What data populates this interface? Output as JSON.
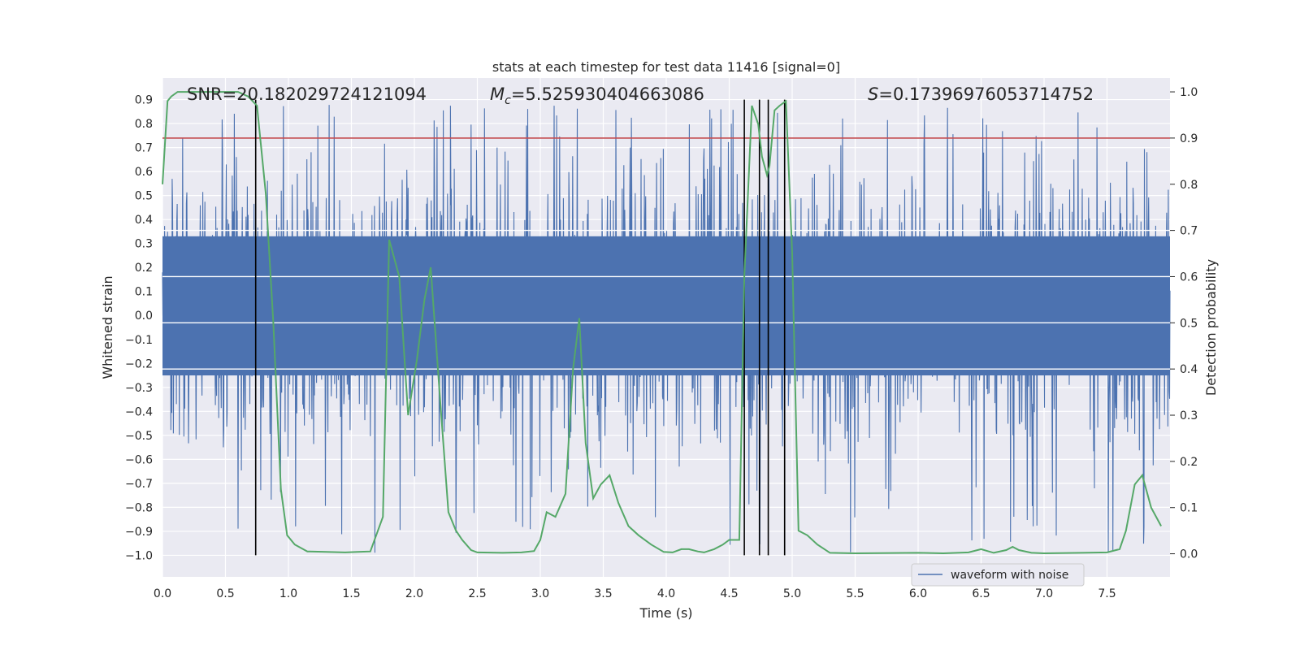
{
  "chart_data": {
    "type": "line",
    "title": "stats at each timestep for test data 11416 [signal=0]",
    "xlabel": "Time (s)",
    "ylabel": "Whitened strain",
    "y2label": "Detection probability",
    "xlim": [
      0.0,
      8.0
    ],
    "ylim": [
      -1.09,
      0.99
    ],
    "y2lim": [
      -0.05,
      1.03
    ],
    "x_ticks": [
      "0.0",
      "0.5",
      "1.0",
      "1.5",
      "2.0",
      "2.5",
      "3.0",
      "3.5",
      "4.0",
      "4.5",
      "5.0",
      "5.5",
      "6.0",
      "6.5",
      "7.0",
      "7.5"
    ],
    "y_ticks": [
      "0.9",
      "0.8",
      "0.7",
      "0.6",
      "0.5",
      "0.4",
      "0.3",
      "0.2",
      "0.1",
      "0.0",
      "−0.1",
      "−0.2",
      "−0.3",
      "−0.4",
      "−0.5",
      "−0.6",
      "−0.7",
      "−0.8",
      "−0.9",
      "−1.0"
    ],
    "y2_ticks": [
      "0.0",
      "0.1",
      "0.2",
      "0.3",
      "0.4",
      "0.5",
      "0.6",
      "0.7",
      "0.8",
      "0.9",
      "1.0"
    ],
    "annotations": {
      "snr": "SNR=20.182029724121094",
      "mc_symbol": "M",
      "mc_sub": "c",
      "mc_value": "=5.525930404663086",
      "s_symbol": "S",
      "s_value": "=0.17396976053714752"
    },
    "legend": {
      "location": "lower right",
      "entries": [
        "waveform with noise"
      ]
    },
    "threshold": {
      "value": 0.9,
      "axis": "y2",
      "color": "#c44e52"
    },
    "detection_markers_x": [
      0.74,
      4.62,
      4.74,
      4.81,
      4.94
    ],
    "series": [
      {
        "name": "waveform with noise",
        "axis": "y",
        "color": "#4c72b0",
        "kind": "noise",
        "core_range": [
          -0.25,
          0.33
        ],
        "typical_max": 0.55,
        "typical_min": -0.5,
        "peak_max": 0.88,
        "peak_min": -1.0
      },
      {
        "axis": "y2",
        "color": "#55a868",
        "x": [
          0.0,
          0.04,
          0.07,
          0.12,
          0.2,
          0.4,
          0.6,
          0.68,
          0.75,
          0.82,
          0.88,
          0.94,
          0.99,
          1.05,
          1.15,
          1.3,
          1.45,
          1.55,
          1.65,
          1.75,
          1.8,
          1.88,
          1.95,
          2.02,
          2.08,
          2.13,
          2.2,
          2.27,
          2.33,
          2.38,
          2.45,
          2.5,
          2.7,
          2.85,
          2.95,
          3.0,
          3.05,
          3.12,
          3.2,
          3.26,
          3.31,
          3.36,
          3.42,
          3.48,
          3.55,
          3.62,
          3.7,
          3.78,
          3.88,
          3.98,
          4.05,
          4.12,
          4.18,
          4.25,
          4.3,
          4.38,
          4.45,
          4.5,
          4.58,
          4.62,
          4.68,
          4.73,
          4.76,
          4.8,
          4.82,
          4.86,
          4.9,
          4.95,
          5.0,
          5.05,
          5.12,
          5.2,
          5.3,
          5.5,
          6.0,
          6.2,
          6.4,
          6.5,
          6.6,
          6.7,
          6.75,
          6.8,
          6.9,
          7.0,
          7.3,
          7.5,
          7.6,
          7.65,
          7.72,
          7.78,
          7.85,
          7.93
        ],
        "y": [
          0.8,
          0.98,
          0.99,
          1.0,
          1.0,
          1.0,
          1.0,
          0.99,
          0.97,
          0.78,
          0.5,
          0.14,
          0.04,
          0.02,
          0.005,
          0.004,
          0.003,
          0.004,
          0.005,
          0.08,
          0.68,
          0.6,
          0.3,
          0.42,
          0.55,
          0.62,
          0.35,
          0.09,
          0.05,
          0.03,
          0.008,
          0.003,
          0.002,
          0.003,
          0.006,
          0.03,
          0.09,
          0.08,
          0.13,
          0.4,
          0.51,
          0.24,
          0.12,
          0.15,
          0.17,
          0.11,
          0.06,
          0.04,
          0.02,
          0.004,
          0.003,
          0.01,
          0.01,
          0.005,
          0.003,
          0.01,
          0.02,
          0.03,
          0.03,
          0.6,
          0.97,
          0.93,
          0.86,
          0.82,
          0.84,
          0.96,
          0.97,
          0.98,
          0.65,
          0.05,
          0.04,
          0.02,
          0.002,
          0.001,
          0.002,
          0.001,
          0.003,
          0.01,
          0.002,
          0.008,
          0.015,
          0.008,
          0.002,
          0.001,
          0.002,
          0.003,
          0.01,
          0.05,
          0.15,
          0.17,
          0.1,
          0.06
        ]
      }
    ],
    "grid": true,
    "colors": {
      "plot_background": "#eaeaf2",
      "grid": "#ffffff",
      "marker_lines": "#000000"
    }
  }
}
